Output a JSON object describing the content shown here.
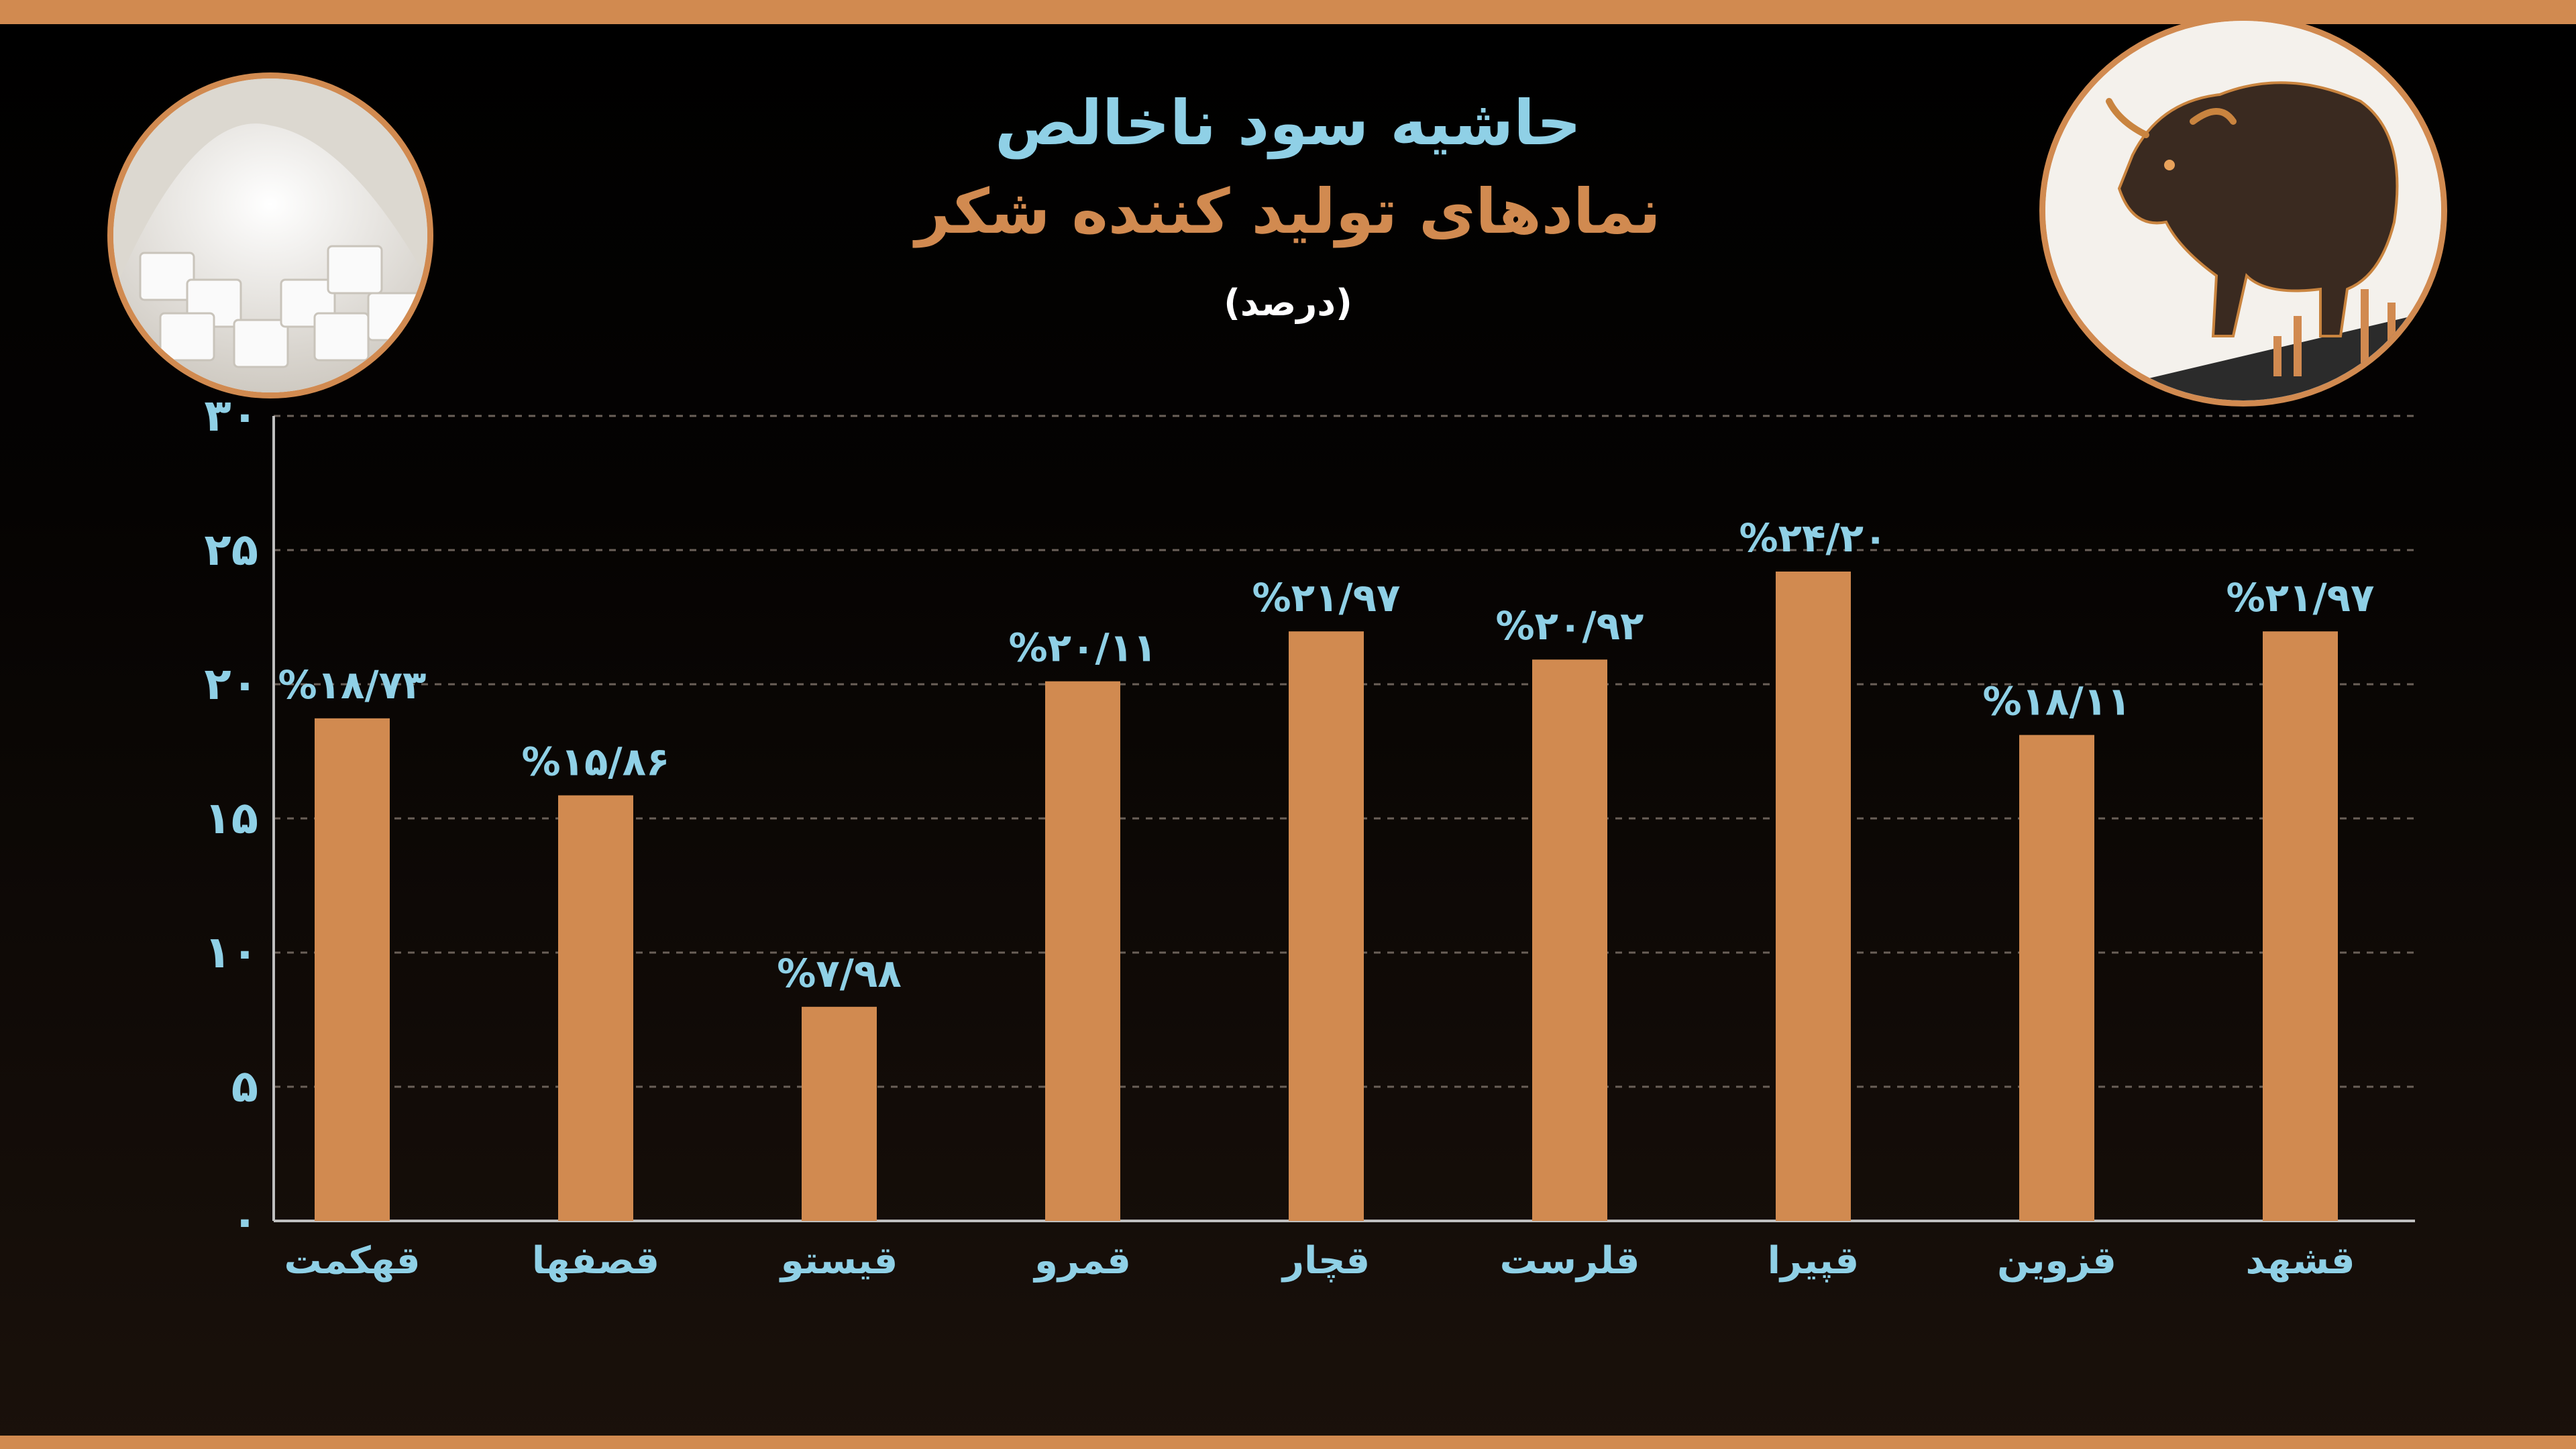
{
  "chart_data": {
    "type": "bar",
    "title": "حاشیه سود ناخالص",
    "subtitle": "نمادهای تولید کننده شکر",
    "unit": "(درصد)",
    "categories": [
      "قهکمت",
      "قصفها",
      "قیستو",
      "قمرو",
      "قچار",
      "قلرست",
      "قپیرا",
      "قزوین",
      "قشهد"
    ],
    "values": [
      18.73,
      15.86,
      7.98,
      20.11,
      21.97,
      20.92,
      24.2,
      18.11,
      21.97
    ],
    "value_labels": [
      "%۱۸/۷۳",
      "%۱۵/۸۶",
      "%۷/۹۸",
      "%۲۰/۱۱",
      "%۲۱/۹۷",
      "%۲۰/۹۲",
      "%۲۴/۲۰",
      "%۱۸/۱۱",
      "%۲۱/۹۷"
    ],
    "ylim": [
      0,
      30
    ],
    "yticks": [
      0,
      5,
      10,
      15,
      20,
      25,
      30
    ],
    "ytick_labels": [
      "۰",
      "۵",
      "۱۰",
      "۱۵",
      "۲۰",
      "۲۵",
      "۳۰"
    ],
    "grid": true,
    "bar_color": "#d18a50",
    "text_color": "#8fd0e6"
  },
  "decor": {
    "left_image": "sugar-cubes-photo",
    "right_image": "bronze-bull-photo",
    "accent": "#d18a50"
  }
}
